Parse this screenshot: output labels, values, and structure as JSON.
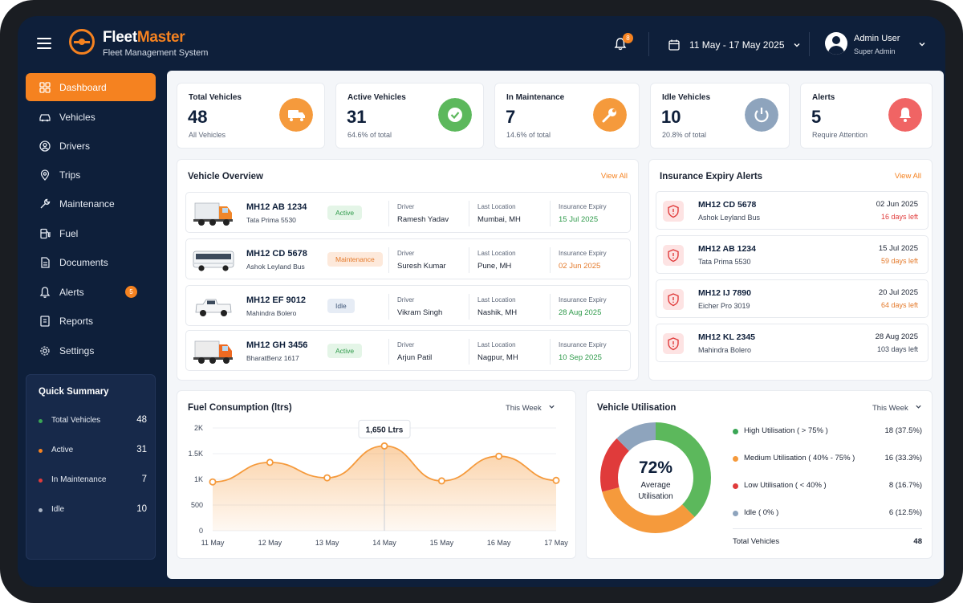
{
  "header": {
    "brand_part1": "Fleet",
    "brand_part2": "Master",
    "subtitle": "Fleet Management System",
    "notification_count": "8",
    "date_range": "11 May - 17 May 2025",
    "user_name": "Admin User",
    "user_role": "Super Admin"
  },
  "sidebar": {
    "items": [
      {
        "label": "Dashboard",
        "icon": "dashboard-icon"
      },
      {
        "label": "Vehicles",
        "icon": "car-icon"
      },
      {
        "label": "Drivers",
        "icon": "driver-icon"
      },
      {
        "label": "Trips",
        "icon": "location-pin-icon"
      },
      {
        "label": "Maintenance",
        "icon": "wrench-icon"
      },
      {
        "label": "Fuel",
        "icon": "fuel-icon"
      },
      {
        "label": "Documents",
        "icon": "document-icon"
      },
      {
        "label": "Alerts",
        "icon": "bell-icon",
        "badge": "5"
      },
      {
        "label": "Reports",
        "icon": "report-icon"
      },
      {
        "label": "Settings",
        "icon": "gear-icon"
      }
    ],
    "quick_summary": {
      "title": "Quick Summary",
      "rows": [
        {
          "label": "Total Vehicles",
          "value": "48",
          "color": "#3aa655"
        },
        {
          "label": "Active",
          "value": "31",
          "color": "#f58220"
        },
        {
          "label": "In Maintenance",
          "value": "7",
          "color": "#e03b3b"
        },
        {
          "label": "Idle",
          "value": "10",
          "color": "#a9b4c4"
        }
      ]
    }
  },
  "stats": [
    {
      "title": "Total Vehicles",
      "value": "48",
      "sub": "All Vehicles",
      "color": "#f59a3c",
      "icon": "truck-icon"
    },
    {
      "title": "Active Vehicles",
      "value": "31",
      "sub": "64.6% of total",
      "color": "#5cb85c",
      "icon": "check-icon"
    },
    {
      "title": "In Maintenance",
      "value": "7",
      "sub": "14.6% of total",
      "color": "#f59a3c",
      "icon": "wrench-icon"
    },
    {
      "title": "Idle Vehicles",
      "value": "10",
      "sub": "20.8% of total",
      "color": "#8ea4bd",
      "icon": "power-icon"
    },
    {
      "title": "Alerts",
      "value": "5",
      "sub": "Require Attention",
      "color": "#f06464",
      "icon": "bell-icon"
    }
  ],
  "vehicle_overview": {
    "title": "Vehicle Overview",
    "view_all": "View All",
    "col_driver": "Driver",
    "col_location": "Last Location",
    "col_insurance": "Insurance Expiry",
    "rows": [
      {
        "plate": "MH12 AB 1234",
        "model": "Tata Prima 5530",
        "status": "Active",
        "driver": "Ramesh Yadav",
        "location": "Mumbai, MH",
        "insurance": "15 Jul 2025",
        "image": "orange-truck"
      },
      {
        "plate": "MH12 CD 5678",
        "model": "Ashok Leyland Bus",
        "status": "Maintenance",
        "driver": "Suresh Kumar",
        "location": "Pune, MH",
        "insurance": "02 Jun 2025",
        "image": "white-bus"
      },
      {
        "plate": "MH12 EF 9012",
        "model": "Mahindra Bolero",
        "status": "Idle",
        "driver": "Vikram Singh",
        "location": "Nashik, MH",
        "insurance": "28 Aug 2025",
        "image": "white-pickup"
      },
      {
        "plate": "MH12 GH 3456",
        "model": "BharatBenz 1617",
        "status": "Active",
        "driver": "Arjun Patil",
        "location": "Nagpur, MH",
        "insurance": "10 Sep 2025",
        "image": "orange-truck"
      }
    ]
  },
  "insurance_alerts": {
    "title": "Insurance Expiry Alerts",
    "view_all": "View All",
    "rows": [
      {
        "plate": "MH12 CD 5678",
        "model": "Ashok Leyland Bus",
        "date": "02 Jun 2025",
        "left": "16 days left",
        "color": "#e03b3b"
      },
      {
        "plate": "MH12 AB 1234",
        "model": "Tata Prima 5530",
        "date": "15 Jul 2025",
        "left": "59 days left",
        "color": "#e47a2b"
      },
      {
        "plate": "MH12 IJ 7890",
        "model": "Eicher Pro 3019",
        "date": "20 Jul 2025",
        "left": "64 days left",
        "color": "#e47a2b"
      },
      {
        "plate": "MH12 KL 2345",
        "model": "Mahindra Bolero",
        "date": "28 Aug 2025",
        "left": "103 days left",
        "color": "#3b4557"
      }
    ]
  },
  "fuel_chart": {
    "title": "Fuel Consumption (ltrs)",
    "period": "This Week",
    "tooltip": "1,650 Ltrs"
  },
  "chart_data": {
    "type": "area",
    "x": [
      "11 May",
      "12 May",
      "13 May",
      "14 May",
      "15 May",
      "16 May",
      "17 May"
    ],
    "y_ticks": [
      "0",
      "500",
      "1K",
      "1.5K",
      "2K"
    ],
    "ylim": [
      0,
      2000
    ],
    "series": [
      {
        "values": [
          950,
          1330,
          1030,
          1650,
          970,
          1450,
          980
        ]
      }
    ],
    "grid": true,
    "highlight_index": 3,
    "color": "#f59a3c"
  },
  "utilisation": {
    "title": "Vehicle Utilisation",
    "period": "This Week",
    "center_value": "72%",
    "center_label_1": "Average",
    "center_label_2": "Utilisation",
    "segments": [
      {
        "label": "High Utilisation ( > 75% )",
        "value": "18 (37.5%)",
        "count": 18,
        "color": "#5cb85c"
      },
      {
        "label": "Medium Utilisation ( 40% - 75% )",
        "value": "16 (33.3%)",
        "count": 16,
        "color": "#f59a3c"
      },
      {
        "label": "Low Utilisation ( < 40% )",
        "value": "8 (16.7%)",
        "count": 8,
        "color": "#e03b3b"
      },
      {
        "label": "Idle ( 0% )",
        "value": "6 (12.5%)",
        "count": 6,
        "color": "#8ea4bd"
      }
    ],
    "total_label": "Total Vehicles",
    "total_value": "48"
  }
}
